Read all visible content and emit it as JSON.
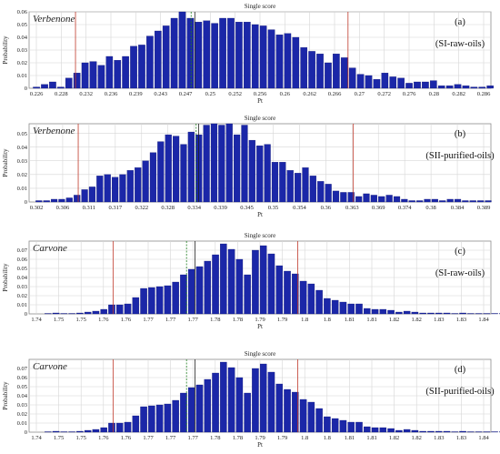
{
  "colors": {
    "bar": "#1b27a8",
    "bar_edge": "#0c1270",
    "limit": "#c0392b",
    "mean": "#1f7f1f"
  },
  "chart_data": [
    {
      "type": "bar",
      "title": "Single score",
      "xlabel": "Pt",
      "ylabel": "Probability",
      "compound": "Verbenone",
      "panel_label": "(a)",
      "condition": "(SI-raw-oils)",
      "xlim": [
        0.2255,
        0.2882
      ],
      "ylim": [
        0,
        0.06
      ],
      "yticks": [
        0,
        0.01,
        0.02,
        0.03,
        0.04,
        0.05,
        0.06
      ],
      "xticks": [
        "0.226",
        "0.228",
        "0.232",
        "0.236",
        "0.239",
        "0.243",
        "0.247",
        "0.25",
        "0.252",
        "0.256",
        "0.26",
        "0.262",
        "0.266",
        "0.27",
        "0.272",
        "0.276",
        "0.28",
        "0.282",
        "0.286"
      ],
      "x_start": 0.2265,
      "x_step": 0.0011,
      "values": [
        0.001,
        0.003,
        0.005,
        0.001,
        0.008,
        0.012,
        0.02,
        0.021,
        0.018,
        0.025,
        0.022,
        0.025,
        0.033,
        0.034,
        0.041,
        0.045,
        0.049,
        0.055,
        0.06,
        0.055,
        0.052,
        0.053,
        0.051,
        0.055,
        0.055,
        0.052,
        0.052,
        0.05,
        0.049,
        0.046,
        0.042,
        0.043,
        0.04,
        0.032,
        0.029,
        0.027,
        0.02,
        0.027,
        0.024,
        0.016,
        0.011,
        0.01,
        0.007,
        0.012,
        0.009,
        0.008,
        0.004,
        0.005,
        0.005,
        0.006,
        0.002,
        0.002,
        0.003,
        0.002,
        0.001,
        0.001,
        0.002
      ],
      "lower_limit": 0.2318,
      "mean": 0.2475,
      "median": 0.248,
      "upper_limit": 0.2688
    },
    {
      "type": "bar",
      "title": "Single score",
      "xlabel": "Pt",
      "ylabel": "Probability",
      "compound": "Verbenone",
      "panel_label": "(b)",
      "condition": "(SII-purified-oils)",
      "xlim": [
        0.3005,
        0.3945
      ],
      "ylim": [
        0,
        0.057
      ],
      "yticks": [
        0,
        0.01,
        0.02,
        0.03,
        0.04,
        0.05
      ],
      "xticks": [
        "0.302",
        "0.306",
        "0.311",
        "0.317",
        "0.322",
        "0.328",
        "0.334",
        "0.339",
        "0.345",
        "0.35",
        "0.354",
        "0.36",
        "0.363",
        "0.369",
        "0.374",
        "0.38",
        "0.384",
        "0.389"
      ],
      "x_start": 0.3025,
      "x_step": 0.00155,
      "values": [
        0.001,
        0.001,
        0.002,
        0.002,
        0.003,
        0.005,
        0.009,
        0.011,
        0.019,
        0.02,
        0.018,
        0.02,
        0.023,
        0.025,
        0.03,
        0.036,
        0.044,
        0.049,
        0.048,
        0.042,
        0.051,
        0.049,
        0.056,
        0.057,
        0.056,
        0.057,
        0.049,
        0.056,
        0.045,
        0.041,
        0.042,
        0.029,
        0.029,
        0.023,
        0.021,
        0.025,
        0.019,
        0.015,
        0.013,
        0.008,
        0.007,
        0.007,
        0.004,
        0.006,
        0.005,
        0.004,
        0.005,
        0.004,
        0.002,
        0.001,
        0.001,
        0.002,
        0.002,
        0.001,
        0.002,
        0.002,
        0.001,
        0.001,
        0.001,
        0.001
      ],
      "lower_limit": 0.3105,
      "mean": 0.3345,
      "median": 0.335,
      "upper_limit": 0.3665
    },
    {
      "type": "bar",
      "title": "Single score",
      "xlabel": "Pt",
      "ylabel": "Probability",
      "compound": "Carvone",
      "panel_label": "(c)",
      "condition": "(SI-raw-oils)",
      "xlim": [
        1.7355,
        1.8455
      ],
      "ylim": [
        0,
        0.08
      ],
      "yticks": [
        0,
        0.01,
        0.02,
        0.03,
        0.04,
        0.05,
        0.06,
        0.07
      ],
      "xticks": [
        "1.74",
        "1.75",
        "1.75",
        "1.76",
        "1.76",
        "1.77",
        "1.77",
        "1.77",
        "1.78",
        "1.78",
        "1.79",
        "1.79",
        "1.8",
        "1.8",
        "1.81",
        "1.81",
        "1.82",
        "1.82",
        "1.83",
        "1.83",
        "1.84"
      ],
      "x_start": 1.74,
      "x_step": 0.0019,
      "values": [
        0.0005,
        0.001,
        0.0005,
        0.0005,
        0.001,
        0.002,
        0.003,
        0.005,
        0.01,
        0.01,
        0.011,
        0.018,
        0.028,
        0.029,
        0.03,
        0.031,
        0.035,
        0.043,
        0.049,
        0.052,
        0.058,
        0.065,
        0.077,
        0.071,
        0.06,
        0.043,
        0.07,
        0.075,
        0.066,
        0.053,
        0.047,
        0.044,
        0.036,
        0.033,
        0.026,
        0.017,
        0.015,
        0.013,
        0.011,
        0.011,
        0.006,
        0.005,
        0.005,
        0.004,
        0.002,
        0.003,
        0.002,
        0.001,
        0.001,
        0.001,
        0.001,
        0.0005,
        0.001,
        0.0005,
        0.0005,
        0.0005,
        0.0005,
        0.0005,
        0.0005
      ],
      "lower_limit": 1.7555,
      "mean": 1.773,
      "median": 1.775,
      "upper_limit": 1.7995
    },
    {
      "type": "bar",
      "title": "Single score",
      "xlabel": "Pt",
      "ylabel": "Probability",
      "compound": "Carvone",
      "panel_label": "(d)",
      "condition": "(SII-purified-oils)",
      "xlim": [
        1.7355,
        1.8455
      ],
      "ylim": [
        0,
        0.08
      ],
      "yticks": [
        0,
        0.01,
        0.02,
        0.03,
        0.04,
        0.05,
        0.06,
        0.07
      ],
      "xticks": [
        "1.74",
        "1.75",
        "1.75",
        "1.76",
        "1.76",
        "1.77",
        "1.77",
        "1.77",
        "1.78",
        "1.78",
        "1.79",
        "1.79",
        "1.8",
        "1.8",
        "1.81",
        "1.81",
        "1.82",
        "1.82",
        "1.83",
        "1.83",
        "1.84"
      ],
      "x_start": 1.74,
      "x_step": 0.0019,
      "values": [
        0.0005,
        0.001,
        0.0005,
        0.0005,
        0.001,
        0.002,
        0.003,
        0.005,
        0.01,
        0.01,
        0.011,
        0.018,
        0.028,
        0.029,
        0.03,
        0.031,
        0.035,
        0.043,
        0.049,
        0.052,
        0.058,
        0.065,
        0.077,
        0.071,
        0.06,
        0.043,
        0.07,
        0.075,
        0.066,
        0.053,
        0.047,
        0.044,
        0.036,
        0.033,
        0.026,
        0.017,
        0.015,
        0.013,
        0.011,
        0.011,
        0.006,
        0.005,
        0.005,
        0.004,
        0.002,
        0.003,
        0.002,
        0.001,
        0.001,
        0.001,
        0.001,
        0.0005,
        0.001,
        0.0005,
        0.0005,
        0.0005,
        0.0005,
        0.0005,
        0.0005
      ],
      "lower_limit": 1.7555,
      "mean": 1.773,
      "median": 1.775,
      "upper_limit": 1.7995
    }
  ]
}
